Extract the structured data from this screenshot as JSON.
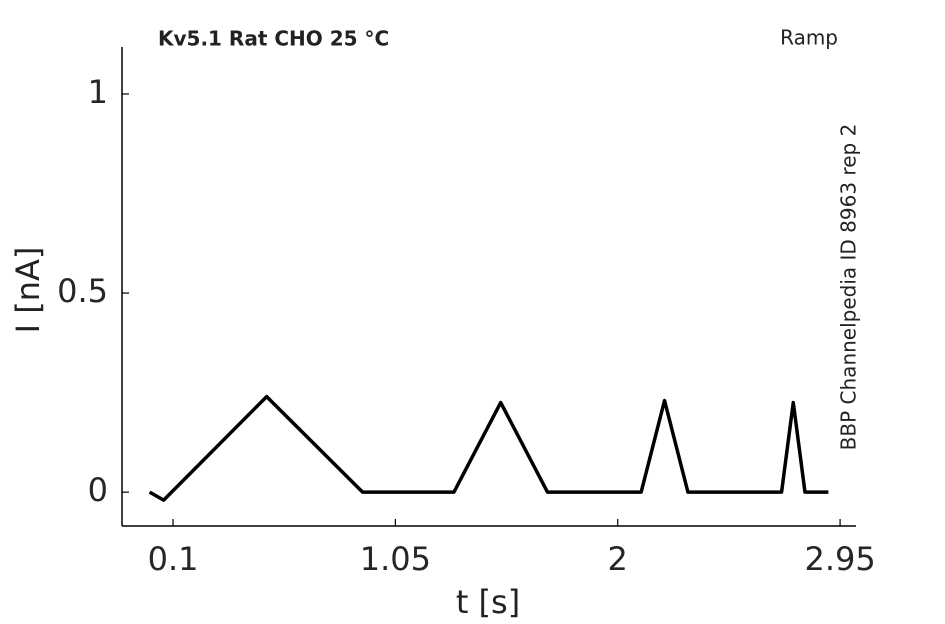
{
  "chart_data": {
    "type": "line",
    "title": "Kv5.1  Rat  CHO  25 °C",
    "annotations": [
      "Ramp",
      "BBP Channelpedia ID 8963 rep 2"
    ],
    "xlabel": "t [s]",
    "ylabel": "I [nA]",
    "x": [
      0,
      0.06,
      0.5,
      0.91,
      1.3,
      1.5,
      1.7,
      2.1,
      2.2,
      2.3,
      2.7,
      2.75,
      2.8,
      2.9
    ],
    "series": [
      {
        "name": null,
        "color": "#000000",
        "values": [
          0,
          -0.02,
          0.24,
          0,
          0,
          0.225,
          0,
          0,
          0.23,
          0,
          0,
          0.225,
          0,
          0
        ]
      }
    ],
    "xlim": [
      -0.118,
      3.018
    ],
    "xticks": [
      0.1,
      1.05,
      2,
      2.95
    ],
    "ylim": [
      -0.085,
      1.118
    ],
    "yticks": [
      0,
      0.5,
      1
    ],
    "grid": false
  }
}
